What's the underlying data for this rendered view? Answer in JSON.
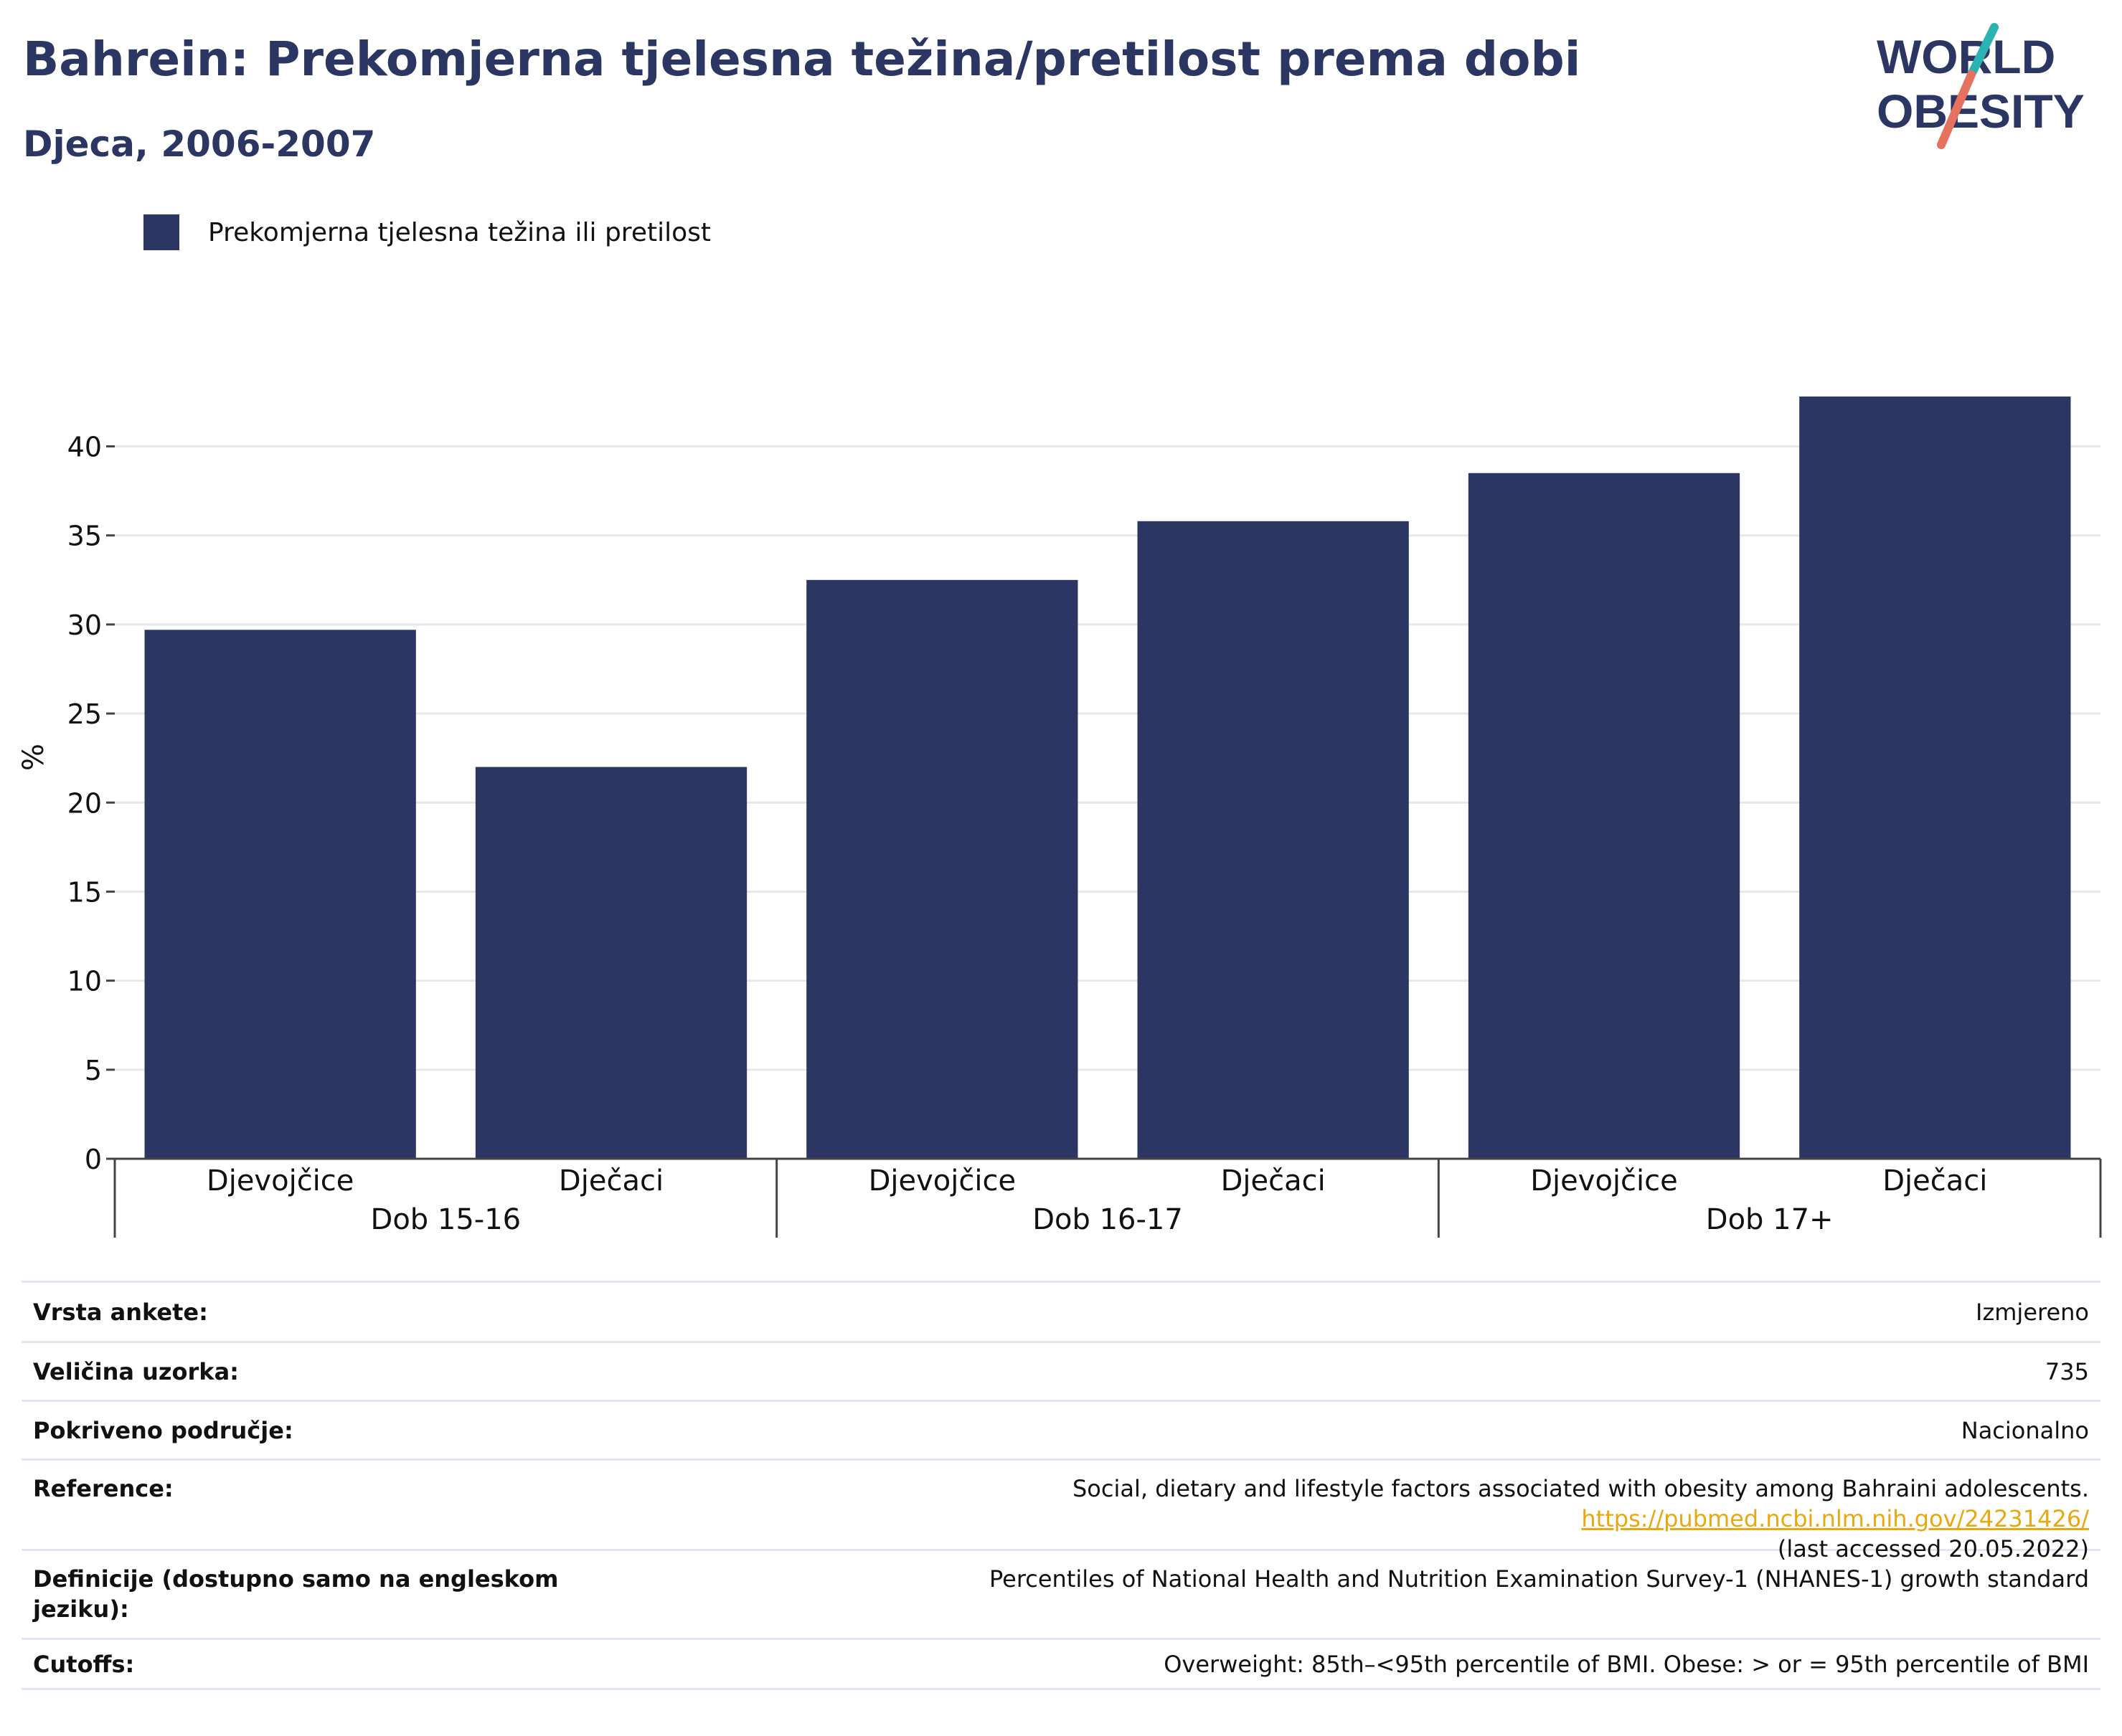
{
  "title": "Bahrein: Prekomjerna tjelesna težina/pretilost prema dobi",
  "subtitle": "Djeca, 2006-2007",
  "logo": {
    "line1": "WORLD",
    "line2": "OBESITY"
  },
  "legend": {
    "label": "Prekomjerna tjelesna težina ili pretilost",
    "color": "#2b3762"
  },
  "chart_data": {
    "type": "bar",
    "ylabel": "%",
    "ylim": [
      0,
      43
    ],
    "yticks": [
      0,
      5,
      10,
      15,
      20,
      25,
      30,
      35,
      40
    ],
    "grid": true,
    "legend_position": "top-left",
    "groups": [
      {
        "label": "Dob 15-16",
        "categories": [
          "Djevojčice",
          "Dječaci"
        ],
        "values": [
          29.7,
          22.0
        ]
      },
      {
        "label": "Dob 16-17",
        "categories": [
          "Djevojčice",
          "Dječaci"
        ],
        "values": [
          32.5,
          35.8
        ]
      },
      {
        "label": "Dob 17+",
        "categories": [
          "Djevojčice",
          "Dječaci"
        ],
        "values": [
          38.5,
          42.8
        ]
      }
    ],
    "series": [
      {
        "name": "Prekomjerna tjelesna težina ili pretilost",
        "color": "#2b3762"
      }
    ]
  },
  "info": {
    "survey_type": {
      "label": "Vrsta ankete:",
      "value": "Izmjereno"
    },
    "sample_size": {
      "label": "Veličina uzorka:",
      "value": "735"
    },
    "coverage": {
      "label": "Pokriveno područje:",
      "value": "Nacionalno"
    },
    "reference": {
      "label": "Reference:",
      "text": "Social, dietary and lifestyle factors associated with obesity among Bahraini adolescents.",
      "link": "https://pubmed.ncbi.nlm.nih.gov/24231426/",
      "accessed": "(last accessed 20.05.2022)"
    },
    "definitions": {
      "label_line1": "Definicije (dostupno samo na engleskom",
      "label_line2": "jeziku):",
      "value": "Percentiles of National Health and Nutrition Examination Survey-1 (NHANES-1) growth standard"
    },
    "cutoffs": {
      "label": "Cutoffs:",
      "value": "Overweight: 85th–<95th percentile of BMI. Obese: > or = 95th percentile of BMI"
    }
  }
}
